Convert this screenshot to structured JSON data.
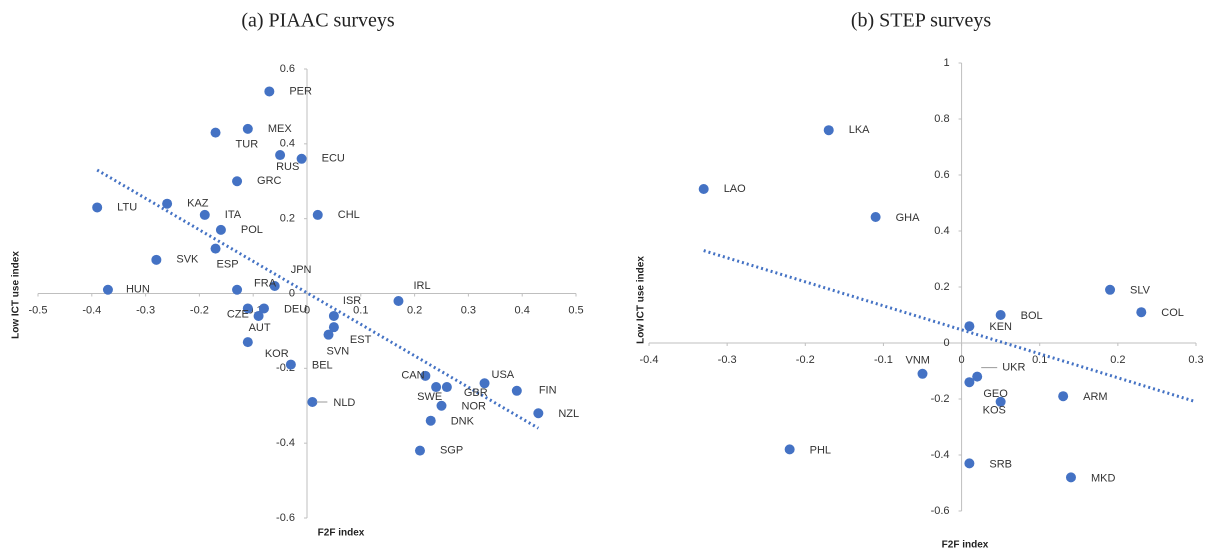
{
  "chart_data": [
    {
      "type": "scatter",
      "title": "(a)  PIAAC surveys",
      "x_label": "F2F index",
      "y_label": "Low ICT use index",
      "color": "#4472c4",
      "labels": [
        "PER",
        "MEX",
        "TUR",
        "RUS",
        "ECU",
        "GRC",
        "LTU",
        "KAZ",
        "ITA",
        "CHL",
        "POL",
        "ESP",
        "SVK",
        "JPN",
        "HUN",
        "FRA",
        "DEU",
        "CZE",
        "AUT",
        "IRL",
        "ISR",
        "EST",
        "SVN",
        "KOR",
        "BEL",
        "CAN",
        "SWE",
        "GBR",
        "USA",
        "FIN",
        "NOR",
        "NZL",
        "DNK",
        "SGP",
        "NLD"
      ],
      "x": [
        -0.07,
        -0.11,
        -0.17,
        -0.05,
        -0.01,
        -0.13,
        -0.39,
        -0.26,
        -0.19,
        0.02,
        -0.16,
        -0.17,
        -0.28,
        -0.06,
        -0.37,
        -0.13,
        -0.08,
        -0.11,
        -0.09,
        0.17,
        0.05,
        0.05,
        0.04,
        -0.11,
        -0.03,
        0.22,
        0.24,
        0.26,
        0.33,
        0.39,
        0.25,
        0.43,
        0.23,
        0.21,
        0.01
      ],
      "values": [
        0.54,
        0.44,
        0.43,
        0.37,
        0.36,
        0.3,
        0.23,
        0.24,
        0.21,
        0.21,
        0.17,
        0.12,
        0.09,
        0.02,
        0.01,
        0.01,
        -0.04,
        -0.04,
        -0.06,
        -0.02,
        -0.06,
        -0.09,
        -0.11,
        -0.13,
        -0.19,
        -0.22,
        -0.25,
        -0.25,
        -0.24,
        -0.26,
        -0.3,
        -0.32,
        -0.34,
        -0.42,
        -0.29
      ],
      "trendline": {
        "x": [
          -0.39,
          0.43
        ],
        "y": [
          0.33,
          -0.36
        ]
      },
      "xlim": [
        -0.5,
        0.5
      ],
      "xticks": [
        -0.5,
        -0.4,
        -0.3,
        -0.2,
        -0.1,
        0,
        0.1,
        0.2,
        0.3,
        0.4,
        0.5
      ],
      "ylim": [
        -0.6,
        0.6
      ],
      "yticks": [
        -0.6,
        -0.4,
        -0.2,
        0,
        0.2,
        0.4,
        0.6
      ]
    },
    {
      "type": "scatter",
      "title": "(b)  STEP surveys",
      "x_label": "F2F index",
      "y_label": "Low ICT use index",
      "color": "#4472c4",
      "labels": [
        "LKA",
        "LAO",
        "GHA",
        "SLV",
        "COL",
        "BOL",
        "KEN",
        "VNM",
        "UKR",
        "GEO",
        "KOS",
        "ARM",
        "PHL",
        "SRB",
        "MKD"
      ],
      "x": [
        -0.17,
        -0.33,
        -0.11,
        0.19,
        0.23,
        0.05,
        0.01,
        -0.05,
        0.02,
        0.01,
        0.05,
        0.13,
        -0.22,
        0.01,
        0.14
      ],
      "values": [
        0.76,
        0.55,
        0.45,
        0.19,
        0.11,
        0.1,
        0.06,
        -0.11,
        -0.12,
        -0.14,
        -0.21,
        -0.19,
        -0.38,
        -0.43,
        -0.48
      ],
      "trendline": {
        "x": [
          -0.33,
          0.3
        ],
        "y": [
          0.33,
          -0.21
        ]
      },
      "xlim": [
        -0.4,
        0.3
      ],
      "xticks": [
        -0.4,
        -0.3,
        -0.2,
        -0.1,
        0,
        0.1,
        0.2,
        0.3
      ],
      "ylim": [
        -0.6,
        1
      ],
      "yticks": [
        -0.6,
        -0.4,
        -0.2,
        0,
        0.2,
        0.4,
        0.6,
        0.8,
        1
      ]
    }
  ]
}
